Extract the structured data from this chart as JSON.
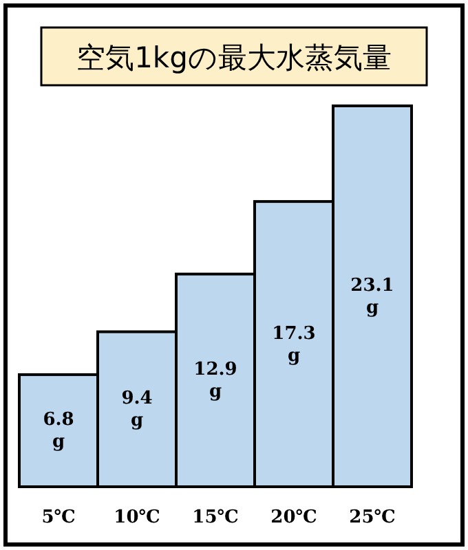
{
  "chart_data": {
    "type": "bar",
    "title": "空気1kgの最大水蒸気量",
    "categories": [
      "5℃",
      "10℃",
      "15℃",
      "20℃",
      "25℃"
    ],
    "values": [
      6.8,
      9.4,
      12.9,
      17.3,
      23.1
    ],
    "value_labels": [
      "6.8 g",
      "9.4 g",
      "12.9 g",
      "17.3 g",
      "23.1 g"
    ],
    "color": "#bdd7ee"
  }
}
